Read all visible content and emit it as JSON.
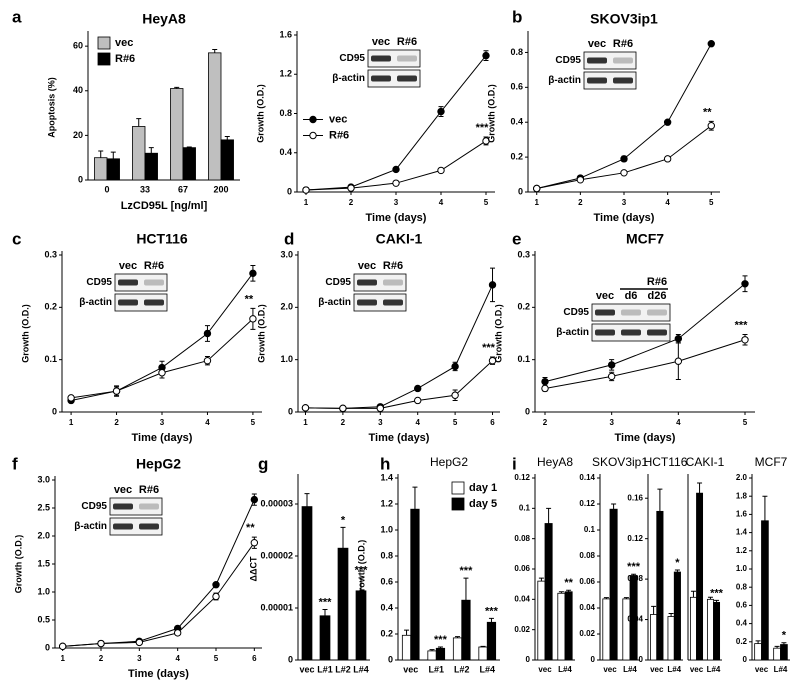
{
  "chart_data": [
    {
      "type": "bar",
      "panel": "a",
      "title": "HeyA8",
      "ylabel": "Apoptosis (%)",
      "xlabel": "LzCD95L [ng/ml]",
      "categories": [
        "0",
        "33",
        "67",
        "200"
      ],
      "series": [
        {
          "name": "vec",
          "color": "#bfbfbf",
          "values": [
            10,
            24,
            41,
            57
          ],
          "errors": [
            3,
            3.5,
            0.5,
            1.5
          ]
        },
        {
          "name": "R#6",
          "color": "#000000",
          "values": [
            9.5,
            12,
            14.5,
            18
          ],
          "errors": [
            3,
            2.5,
            0.3,
            1.5
          ]
        }
      ],
      "ylim": [
        0,
        65
      ],
      "yticks": [
        0,
        20,
        40,
        60
      ],
      "legend": "upper left"
    },
    {
      "type": "line",
      "ylabel": "Growth (O.D.)",
      "xlabel": "Time (days)",
      "x": [
        1,
        2,
        3,
        4,
        5
      ],
      "series": [
        {
          "name": "vec",
          "color": "#000000",
          "marker_fill": "#000000",
          "values": [
            0.02,
            0.05,
            0.23,
            0.82,
            1.39
          ],
          "errors": [
            0.01,
            0.01,
            0.02,
            0.05,
            0.05
          ]
        },
        {
          "name": "R#6",
          "color": "#000000",
          "marker_fill": "#ffffff",
          "values": [
            0.02,
            0.04,
            0.09,
            0.22,
            0.52
          ],
          "errors": [
            0.01,
            0.01,
            0.01,
            0.02,
            0.04
          ]
        }
      ],
      "xlim": [
        0.8,
        5.2
      ],
      "xticks": [
        1,
        2,
        3,
        4,
        5
      ],
      "ylim": [
        0,
        1.6
      ],
      "yticks": [
        0,
        0.4,
        0.8,
        1.2,
        1.6
      ],
      "legend": "center left",
      "annotation": "***",
      "inset": {
        "lanes": [
          "vec",
          "R#6"
        ],
        "rows": [
          "CD95",
          "β-actin"
        ]
      }
    },
    {
      "type": "line",
      "panel": "b",
      "title": "SKOV3ip1",
      "ylabel": "Growth (O.D.)",
      "xlabel": "Time (days)",
      "x": [
        1,
        2,
        3,
        4,
        5
      ],
      "series": [
        {
          "color": "#000000",
          "marker_fill": "#000000",
          "values": [
            0.02,
            0.08,
            0.19,
            0.4,
            0.85
          ],
          "errors": [
            0.005,
            0.005,
            0.015,
            0.005,
            0.005
          ]
        },
        {
          "color": "#000000",
          "marker_fill": "#ffffff",
          "values": [
            0.02,
            0.07,
            0.11,
            0.19,
            0.38
          ],
          "errors": [
            0.005,
            0.005,
            0.005,
            0.005,
            0.025
          ]
        }
      ],
      "xlim": [
        0.8,
        5.2
      ],
      "xticks": [
        1,
        2,
        3,
        4,
        5
      ],
      "ylim": [
        0,
        0.9
      ],
      "yticks": [
        0,
        0.2,
        0.4,
        0.6,
        0.8
      ],
      "annotation": "**",
      "inset": {
        "lanes": [
          "vec",
          "R#6"
        ],
        "rows": [
          "CD95",
          "β-actin"
        ]
      }
    },
    {
      "type": "line",
      "panel": "c",
      "title": "HCT116",
      "ylabel": "Growth (O.D.)",
      "xlabel": "Time (days)",
      "x": [
        1,
        2,
        3,
        4,
        5
      ],
      "series": [
        {
          "color": "#000000",
          "marker_fill": "#000000",
          "values": [
            0.022,
            0.04,
            0.085,
            0.15,
            0.265
          ],
          "errors": [
            0.003,
            0.01,
            0.012,
            0.015,
            0.015
          ]
        },
        {
          "color": "#000000",
          "marker_fill": "#ffffff",
          "values": [
            0.027,
            0.04,
            0.075,
            0.098,
            0.178
          ],
          "errors": [
            0.003,
            0.008,
            0.01,
            0.008,
            0.02
          ]
        }
      ],
      "xlim": [
        0.8,
        5.2
      ],
      "xticks": [
        1,
        2,
        3,
        4,
        5
      ],
      "ylim": [
        0,
        0.3
      ],
      "yticks": [
        0,
        0.1,
        0.2,
        0.3
      ],
      "annotation": "**",
      "inset": {
        "lanes": [
          "vec",
          "R#6"
        ],
        "rows": [
          "CD95",
          "β-actin"
        ]
      }
    },
    {
      "type": "line",
      "panel": "d",
      "title": "CAKI-1",
      "ylabel": "Growth (O.D.)",
      "xlabel": "Time (days)",
      "x": [
        1,
        2,
        3,
        4,
        5,
        6
      ],
      "series": [
        {
          "color": "#000000",
          "marker_fill": "#000000",
          "values": [
            0.08,
            0.07,
            0.1,
            0.45,
            0.87,
            2.43
          ],
          "errors": [
            0.02,
            0.02,
            0.02,
            0.04,
            0.08,
            0.32
          ]
        },
        {
          "color": "#000000",
          "marker_fill": "#ffffff",
          "values": [
            0.08,
            0.07,
            0.07,
            0.22,
            0.32,
            0.98
          ],
          "errors": [
            0.02,
            0.02,
            0.02,
            0.03,
            0.1,
            0.07
          ]
        }
      ],
      "xlim": [
        0.8,
        6.2
      ],
      "xticks": [
        1,
        2,
        3,
        4,
        5,
        6
      ],
      "ylim": [
        0,
        3
      ],
      "yticks": [
        0,
        {
          "value": 1,
          "label": "1.0"
        },
        {
          "value": 2,
          "label": "2.0"
        },
        {
          "value": 3,
          "label": "3.0"
        }
      ],
      "annotation": "***",
      "inset": {
        "lanes": [
          "vec",
          "R#6"
        ],
        "rows": [
          "CD95",
          "β-actin"
        ]
      }
    },
    {
      "type": "line",
      "panel": "e",
      "title": "MCF7",
      "ylabel": "Growth (O.D.)",
      "xlabel": "Time (days)",
      "x": [
        2,
        3,
        4,
        5
      ],
      "series": [
        {
          "color": "#000000",
          "marker_fill": "#000000",
          "values": [
            0.058,
            0.09,
            0.14,
            0.245
          ],
          "errors": [
            0.008,
            0.01,
            0.008,
            0.015
          ]
        },
        {
          "color": "#000000",
          "marker_fill": "#ffffff",
          "values": [
            0.045,
            0.068,
            0.097,
            0.138
          ],
          "errors": [
            0.005,
            0.008,
            0.035,
            0.01
          ]
        }
      ],
      "xlim": [
        1.85,
        5.15
      ],
      "xticks": [
        2,
        3,
        4,
        5
      ],
      "ylim": [
        0,
        0.3
      ],
      "yticks": [
        0,
        0.1,
        0.2,
        0.3
      ],
      "annotation": "***",
      "inset": {
        "header": "R#6",
        "lanes": [
          "vec",
          "d6",
          "d26"
        ],
        "rows": [
          "CD95",
          "β-actin"
        ]
      }
    },
    {
      "type": "line",
      "panel": "f",
      "title": "HepG2",
      "ylabel": "Growth (O.D.)",
      "xlabel": "Time (days)",
      "x": [
        1,
        2,
        3,
        4,
        5,
        6
      ],
      "series": [
        {
          "color": "#000000",
          "marker_fill": "#000000",
          "values": [
            0.03,
            0.08,
            0.12,
            0.35,
            1.13,
            2.65
          ],
          "errors": [
            0.01,
            0.01,
            0.01,
            0.02,
            0.03,
            0.1
          ]
        },
        {
          "color": "#000000",
          "marker_fill": "#ffffff",
          "values": [
            0.03,
            0.08,
            0.1,
            0.27,
            0.92,
            1.88
          ],
          "errors": [
            0.01,
            0.01,
            0.01,
            0.02,
            0.06,
            0.1
          ]
        }
      ],
      "xlim": [
        0.8,
        6.2
      ],
      "xticks": [
        1,
        2,
        3,
        4,
        5,
        6
      ],
      "ylim": [
        0,
        3
      ],
      "yticks": [
        0,
        0.5,
        {
          "value": 1,
          "label": "1.0"
        },
        1.5,
        {
          "value": 2,
          "label": "2.0"
        },
        2.5,
        {
          "value": 3,
          "label": "3.0"
        }
      ],
      "annotation": "**",
      "inset": {
        "lanes": [
          "vec",
          "R#6"
        ],
        "rows": [
          "CD95",
          "β-actin"
        ]
      }
    },
    {
      "type": "bar",
      "panel": "g",
      "ylabel": "ΔΔCT",
      "categories": [
        "vec",
        "L#1",
        "L#2",
        "L#4"
      ],
      "series": [
        {
          "color": "#000000",
          "values": [
            2.95e-05,
            8.5e-06,
            2.15e-05,
            1.33e-05
          ],
          "errors": [
            2.5e-06,
            1.2e-06,
            4e-06,
            2.5e-06
          ]
        }
      ],
      "ylim": [
        0,
        3.5e-05
      ],
      "yticks": [
        0,
        1e-05,
        2e-05,
        3e-05
      ],
      "annotations": [
        null,
        "***",
        "*",
        "***"
      ]
    },
    {
      "type": "bar",
      "panel": "h",
      "title": "HepG2",
      "ylabel": "Growth (O.D.)",
      "categories": [
        "vec",
        "L#1",
        "L#2",
        "L#4"
      ],
      "series": [
        {
          "name": "day 1",
          "color": "#ffffff",
          "values": [
            0.19,
            0.07,
            0.17,
            0.1
          ],
          "errors": [
            0.04,
            0.01,
            0.01,
            0.005
          ]
        },
        {
          "name": "day 5",
          "color": "#000000",
          "values": [
            1.16,
            0.09,
            0.46,
            0.29
          ],
          "errors": [
            0.17,
            0.01,
            0.17,
            0.03
          ]
        }
      ],
      "ylim": [
        0,
        1.4
      ],
      "yticks": [
        0,
        0.2,
        0.4,
        0.6,
        0.8,
        {
          "value": 1,
          "label": "1.0"
        },
        1.2,
        1.4
      ],
      "legend": "upper right",
      "annotations": [
        null,
        "***",
        "***",
        "***"
      ]
    },
    {
      "type": "bar",
      "panel": "i",
      "title": "HeyA8",
      "categories": [
        "vec",
        "L#4"
      ],
      "series": [
        {
          "color": "#ffffff",
          "values": [
            0.052,
            0.044
          ],
          "errors": [
            0.002,
            0.001
          ]
        },
        {
          "color": "#000000",
          "values": [
            0.09,
            0.045
          ],
          "errors": [
            0.01,
            0.001
          ]
        }
      ],
      "ylim": [
        0,
        0.12
      ],
      "yticks": [
        0,
        0.02,
        0.04,
        0.06,
        0.08,
        0.1,
        0.12
      ],
      "annotations": [
        null,
        "**"
      ]
    },
    {
      "type": "bar",
      "title": "SKOV3ip1",
      "categories": [
        "vec",
        "L#4"
      ],
      "series": [
        {
          "color": "#ffffff",
          "values": [
            0.047,
            0.047
          ],
          "errors": [
            0.001,
            0.001
          ]
        },
        {
          "color": "#000000",
          "values": [
            0.116,
            0.065
          ],
          "errors": [
            0.004,
            0.001
          ]
        }
      ],
      "ylim": [
        0,
        0.14
      ],
      "yticks": [
        0,
        0.02,
        0.04,
        0.06,
        0.08,
        0.1,
        0.12,
        0.14
      ],
      "annotations": [
        null,
        "***"
      ]
    },
    {
      "type": "bar",
      "title": "HCT116",
      "categories": [
        "vec",
        "L#4"
      ],
      "series": [
        {
          "color": "#ffffff",
          "values": [
            0.045,
            0.043
          ],
          "errors": [
            0.008,
            0.003
          ]
        },
        {
          "color": "#000000",
          "values": [
            0.147,
            0.087
          ],
          "errors": [
            0.022,
            0.002
          ]
        }
      ],
      "ylim": [
        0,
        0.18
      ],
      "yticks": [
        0,
        0.04,
        0.08,
        0.12,
        0.16
      ],
      "annotations": [
        null,
        "*"
      ]
    },
    {
      "type": "bar",
      "title": "CAKI-1",
      "categories": [
        "vec",
        "L#4"
      ],
      "series": [
        {
          "color": "#ffffff",
          "values": [
            0.062,
            0.06
          ],
          "errors": [
            0.006,
            0.002
          ]
        },
        {
          "color": "#000000",
          "values": [
            0.165,
            0.057
          ],
          "errors": [
            0.01,
            0.002
          ]
        }
      ],
      "ylim": [
        0,
        0.18
      ],
      "annotations": [
        null,
        "***"
      ]
    },
    {
      "type": "bar",
      "title": "MCF7",
      "categories": [
        "vec",
        "L#4"
      ],
      "series": [
        {
          "color": "#ffffff",
          "values": [
            0.18,
            0.13
          ],
          "errors": [
            0.03,
            0.02
          ]
        },
        {
          "color": "#000000",
          "values": [
            1.53,
            0.17
          ],
          "errors": [
            0.27,
            0.02
          ]
        }
      ],
      "ylim": [
        0,
        2
      ],
      "yticks": [
        0,
        0.2,
        0.4,
        0.6,
        0.8,
        {
          "value": 1,
          "label": "1.0"
        },
        1.2,
        1.4,
        1.6,
        1.8,
        {
          "value": 2,
          "label": "2.0"
        }
      ],
      "annotations": [
        null,
        "*"
      ]
    }
  ]
}
